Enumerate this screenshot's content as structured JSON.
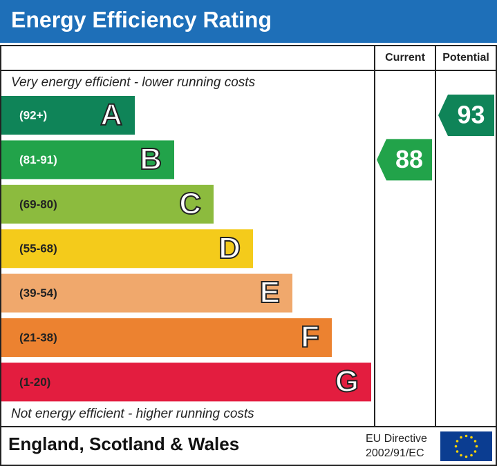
{
  "header": {
    "title": "Energy Efficiency Rating"
  },
  "columns": {
    "current": "Current",
    "potential": "Potential"
  },
  "top_note": "Very energy efficient - lower running costs",
  "bottom_note": "Not energy efficient - higher running costs",
  "bands": [
    {
      "letter": "A",
      "range": "(92+)",
      "color": "#0f8458",
      "text_color": "#ffffff"
    },
    {
      "letter": "B",
      "range": "(81-91)",
      "color": "#22a34a",
      "text_color": "#ffffff"
    },
    {
      "letter": "C",
      "range": "(69-80)",
      "color": "#8cbb3e",
      "text_color": "#222222"
    },
    {
      "letter": "D",
      "range": "(55-68)",
      "color": "#f4cb1b",
      "text_color": "#222222"
    },
    {
      "letter": "E",
      "range": "(39-54)",
      "color": "#f0a86c",
      "text_color": "#222222"
    },
    {
      "letter": "F",
      "range": "(21-38)",
      "color": "#ec8230",
      "text_color": "#222222"
    },
    {
      "letter": "G",
      "range": "(1-20)",
      "color": "#e31d3f",
      "text_color": "#222222"
    }
  ],
  "current": 88,
  "potential": 93,
  "footer": {
    "region": "England, Scotland & Wales",
    "directive_line1": "EU Directive",
    "directive_line2": "2002/91/EC"
  }
}
